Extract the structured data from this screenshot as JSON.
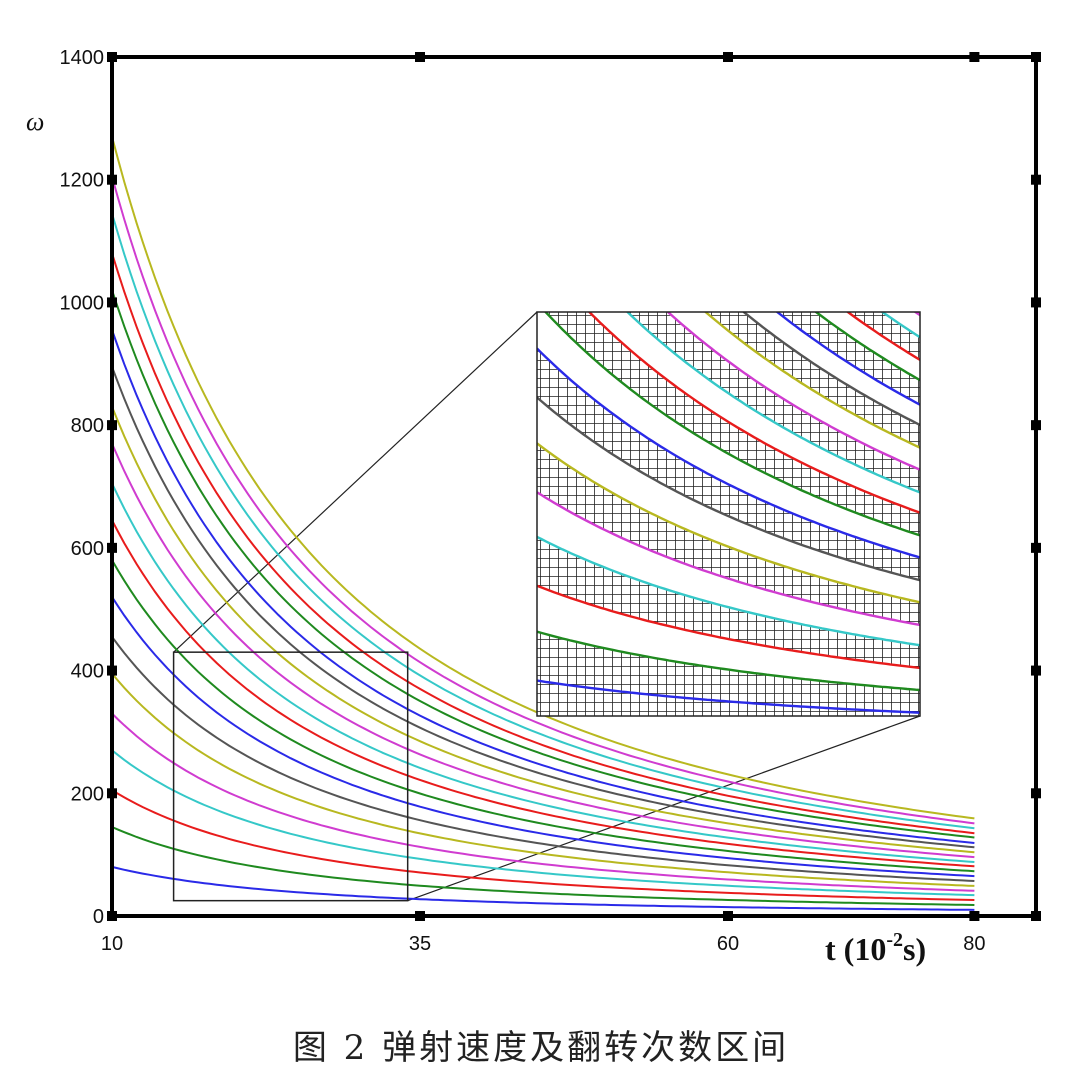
{
  "caption": "图 2 弹射速度及翻转次数区间",
  "chart_data": {
    "type": "line",
    "title": "",
    "xlabel": "t (10",
    "xlabel_exponent": "-2",
    "xlabel_unit": "s)",
    "ylabel": "ω",
    "x_ticks": [
      10,
      35,
      60,
      80
    ],
    "y_ticks": [
      0,
      200,
      400,
      600,
      800,
      1000,
      1200,
      1400
    ],
    "xlim": [
      10,
      85
    ],
    "ylim": [
      0,
      1400
    ],
    "grid": false,
    "legend": "none",
    "series_colors": [
      "#2a2ae8",
      "#1f8a1f",
      "#e81c1c",
      "#35c8c8",
      "#d03cd0",
      "#b8b820",
      "#555555"
    ],
    "series_x": [
      10,
      80
    ],
    "series": [
      {
        "values": [
          80,
          10
        ]
      },
      {
        "values": [
          145,
          18
        ]
      },
      {
        "values": [
          205,
          26
        ]
      },
      {
        "values": [
          270,
          34
        ]
      },
      {
        "values": [
          330,
          41
        ]
      },
      {
        "values": [
          395,
          49
        ]
      },
      {
        "values": [
          455,
          57
        ]
      },
      {
        "values": [
          520,
          65
        ]
      },
      {
        "values": [
          580,
          73
        ]
      },
      {
        "values": [
          645,
          81
        ]
      },
      {
        "values": [
          705,
          88
        ]
      },
      {
        "values": [
          770,
          96
        ]
      },
      {
        "values": [
          830,
          104
        ]
      },
      {
        "values": [
          895,
          112
        ]
      },
      {
        "values": [
          955,
          119
        ]
      },
      {
        "values": [
          1020,
          128
        ]
      },
      {
        "values": [
          1080,
          135
        ]
      },
      {
        "values": [
          1145,
          143
        ]
      },
      {
        "values": [
          1205,
          151
        ]
      },
      {
        "values": [
          1270,
          159
        ]
      }
    ],
    "zoom_box": {
      "x": [
        15,
        34
      ],
      "y": [
        25,
        430
      ]
    }
  }
}
